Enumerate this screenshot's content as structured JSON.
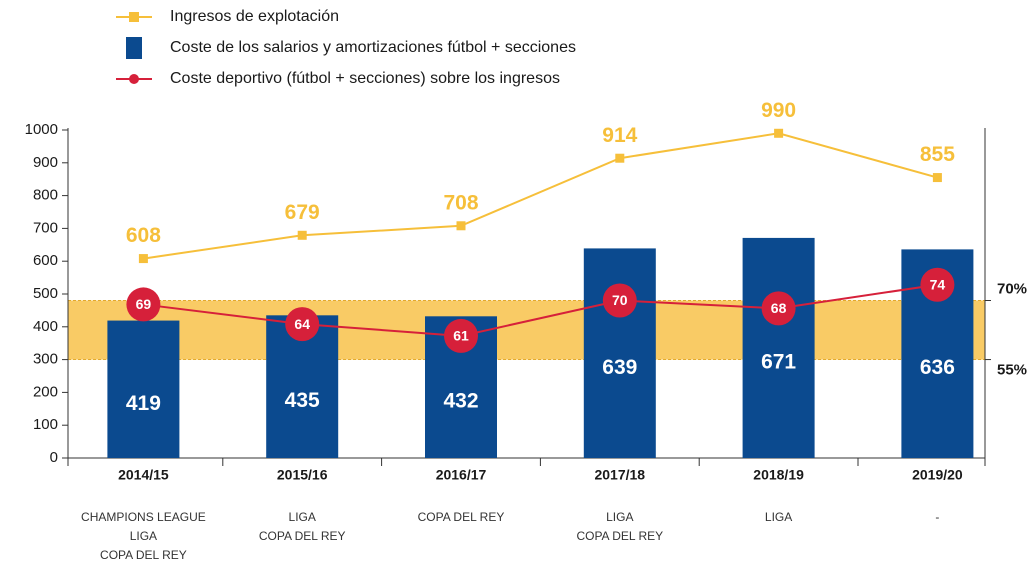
{
  "chart_data": {
    "type": "bar",
    "categories": [
      "2014/15",
      "2015/16",
      "2016/17",
      "2017/18",
      "2018/19",
      "2019/20"
    ],
    "titles": [
      [
        "CHAMPIONS LEAGUE",
        "LIGA",
        "COPA DEL REY"
      ],
      [
        "LIGA",
        "COPA DEL REY"
      ],
      [
        "COPA DEL REY"
      ],
      [
        "LIGA",
        "COPA DEL REY"
      ],
      [
        "LIGA"
      ],
      [
        "-"
      ]
    ],
    "series": [
      {
        "name": "Ingresos de explotación",
        "type": "line",
        "color": "#f6bf3a",
        "values": [
          608,
          679,
          708,
          914,
          990,
          855
        ]
      },
      {
        "name": "Coste de los salarios y amortizaciones fútbol + secciones",
        "type": "bar",
        "color": "#0b4a8f",
        "values": [
          419,
          435,
          432,
          639,
          671,
          636
        ]
      },
      {
        "name": "Coste deportivo (fútbol + secciones) sobre los ingresos",
        "type": "line",
        "axis": "y2",
        "color": "#d6203a",
        "values": [
          69,
          64,
          61,
          70,
          68,
          74
        ]
      }
    ],
    "ylim": [
      0,
      1000
    ],
    "yticks": [
      0,
      100,
      200,
      300,
      400,
      500,
      600,
      700,
      800,
      900,
      1000
    ],
    "y2lim": [
      30,
      113.3
    ],
    "y2ticks": [
      {
        "value": 70,
        "label": "70%"
      },
      {
        "value": 55,
        "label": "55%"
      }
    ],
    "band_color": "#f8c24a",
    "legend": "top-left",
    "grid": false
  }
}
